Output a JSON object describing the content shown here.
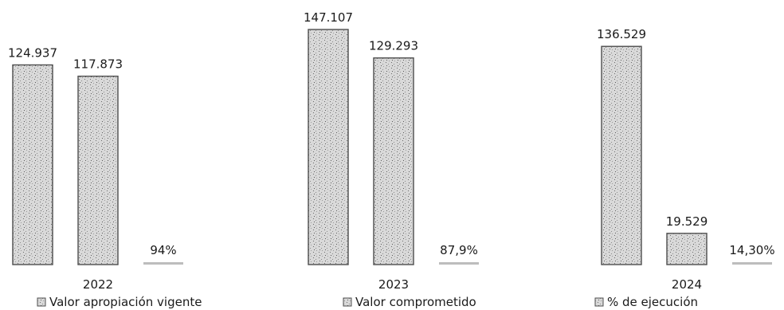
{
  "chart_data": {
    "type": "bar",
    "categories": [
      "2022",
      "2023",
      "2024"
    ],
    "series": [
      {
        "name": "Valor apropiación vigente",
        "values": [
          124937,
          147107,
          136529
        ],
        "labels": [
          "124.937",
          "147.107",
          "136.529"
        ]
      },
      {
        "name": "Valor comprometido",
        "values": [
          117873,
          129293,
          19529
        ],
        "labels": [
          "117.873",
          "129.293",
          "19.529"
        ]
      },
      {
        "name": "% de ejecución",
        "values": [
          94,
          87.9,
          14.3
        ],
        "labels": [
          "94%",
          "87,9%",
          "14,30%"
        ]
      }
    ],
    "ylim": [
      0,
      147107
    ],
    "grid": false,
    "legend_position": "bottom",
    "colors": {
      "bar_fill": "#d9d9d9",
      "bar_stroke": "#4d4d4d",
      "speckle": "#6b6b6b",
      "text": "#1a1a1a"
    }
  }
}
